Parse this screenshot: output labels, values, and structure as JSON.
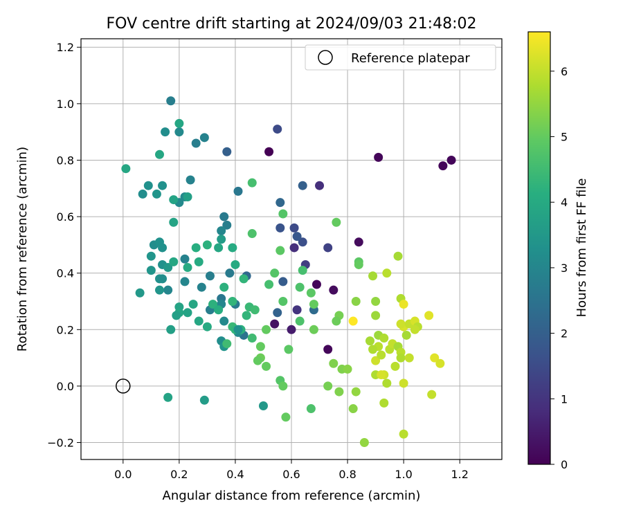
{
  "chart_data": {
    "type": "scatter",
    "title": "FOV centre drift starting at 2024/09/03 21:48:02",
    "xlabel": "Angular distance from reference (arcmin)",
    "ylabel": "Rotation from reference (arcmin)",
    "xlim": [
      -0.15,
      1.35
    ],
    "ylim": [
      -0.26,
      1.23
    ],
    "xticks": [
      0.0,
      0.2,
      0.4,
      0.6,
      0.8,
      1.0,
      1.2
    ],
    "yticks": [
      -0.2,
      0.0,
      0.2,
      0.4,
      0.6,
      0.8,
      1.0,
      1.2
    ],
    "xtick_labels": [
      "0.0",
      "0.2",
      "0.4",
      "0.6",
      "0.8",
      "1.0",
      "1.2"
    ],
    "ytick_labels": [
      "−0.2",
      "0.0",
      "0.2",
      "0.4",
      "0.6",
      "0.8",
      "1.0",
      "1.2"
    ],
    "grid": true,
    "legend": {
      "label": "Reference platepar",
      "placement": "upper right",
      "marker": "open circle"
    },
    "reference_point": {
      "x": 0.0,
      "y": 0.0
    },
    "colorbar": {
      "label": "Hours from first FF file",
      "colormap": "viridis",
      "range": [
        0,
        6.6
      ],
      "ticks": [
        0,
        1,
        2,
        3,
        4,
        5,
        6
      ],
      "tick_labels": [
        "0",
        "1",
        "2",
        "3",
        "4",
        "5",
        "6"
      ]
    },
    "points": [
      [
        0.52,
        0.83,
        0.0
      ],
      [
        0.91,
        0.81,
        0.1
      ],
      [
        1.14,
        0.78,
        0.1
      ],
      [
        1.17,
        0.8,
        0.1
      ],
      [
        0.84,
        0.51,
        0.2
      ],
      [
        0.69,
        0.36,
        0.1
      ],
      [
        0.75,
        0.34,
        0.2
      ],
      [
        0.73,
        0.13,
        0.1
      ],
      [
        0.54,
        0.22,
        0.3
      ],
      [
        0.6,
        0.2,
        0.5
      ],
      [
        0.7,
        0.71,
        0.9
      ],
      [
        0.61,
        0.49,
        0.9
      ],
      [
        0.62,
        0.27,
        1.0
      ],
      [
        0.55,
        0.91,
        1.5
      ],
      [
        0.65,
        0.43,
        1.2
      ],
      [
        0.73,
        0.49,
        1.3
      ],
      [
        0.64,
        0.51,
        1.6
      ],
      [
        0.61,
        0.56,
        1.5
      ],
      [
        0.56,
        0.56,
        1.7
      ],
      [
        0.62,
        0.53,
        1.8
      ],
      [
        0.57,
        0.37,
        1.9
      ],
      [
        0.56,
        0.65,
        2.2
      ],
      [
        0.64,
        0.71,
        2.0
      ],
      [
        0.37,
        0.83,
        2.0
      ],
      [
        0.44,
        0.39,
        2.2
      ],
      [
        0.55,
        0.26,
        2.1
      ],
      [
        0.68,
        0.27,
        2.3
      ],
      [
        0.43,
        0.18,
        2.5
      ],
      [
        0.17,
        1.01,
        2.8
      ],
      [
        0.29,
        0.88,
        2.9
      ],
      [
        0.26,
        0.86,
        2.8
      ],
      [
        0.41,
        0.69,
        2.6
      ],
      [
        0.24,
        0.73,
        2.9
      ],
      [
        0.36,
        0.6,
        2.7
      ],
      [
        0.37,
        0.57,
        2.8
      ],
      [
        0.35,
        0.55,
        3.0
      ],
      [
        0.2,
        0.9,
        3.1
      ],
      [
        0.15,
        0.9,
        3.2
      ],
      [
        0.22,
        0.67,
        3.1
      ],
      [
        0.2,
        0.65,
        3.1
      ],
      [
        0.14,
        0.71,
        3.3
      ],
      [
        0.09,
        0.71,
        3.3
      ],
      [
        0.07,
        0.68,
        3.2
      ],
      [
        0.12,
        0.68,
        3.4
      ],
      [
        0.11,
        0.5,
        3.2
      ],
      [
        0.13,
        0.51,
        3.3
      ],
      [
        0.14,
        0.49,
        3.3
      ],
      [
        0.1,
        0.46,
        3.4
      ],
      [
        0.14,
        0.43,
        3.3
      ],
      [
        0.16,
        0.42,
        3.5
      ],
      [
        0.1,
        0.41,
        3.4
      ],
      [
        0.13,
        0.38,
        3.3
      ],
      [
        0.14,
        0.38,
        3.2
      ],
      [
        0.16,
        0.34,
        3.0
      ],
      [
        0.13,
        0.34,
        3.4
      ],
      [
        0.06,
        0.33,
        3.5
      ],
      [
        0.22,
        0.45,
        2.9
      ],
      [
        0.22,
        0.37,
        3.0
      ],
      [
        0.31,
        0.39,
        2.8
      ],
      [
        0.28,
        0.35,
        2.9
      ],
      [
        0.38,
        0.4,
        2.7
      ],
      [
        0.35,
        0.31,
        2.6
      ],
      [
        0.4,
        0.29,
        2.7
      ],
      [
        0.31,
        0.27,
        2.8
      ],
      [
        0.35,
        0.29,
        3.0
      ],
      [
        0.36,
        0.23,
        3.1
      ],
      [
        0.41,
        0.19,
        3.1
      ],
      [
        0.35,
        0.16,
        3.2
      ],
      [
        0.36,
        0.14,
        3.4
      ],
      [
        0.5,
        -0.07,
        3.5
      ],
      [
        0.29,
        -0.05,
        3.6
      ],
      [
        0.16,
        -0.04,
        3.8
      ],
      [
        0.2,
        0.93,
        3.9
      ],
      [
        0.13,
        0.82,
        3.9
      ],
      [
        0.01,
        0.77,
        3.9
      ],
      [
        0.18,
        0.58,
        3.8
      ],
      [
        0.18,
        0.66,
        3.8
      ],
      [
        0.23,
        0.67,
        3.7
      ],
      [
        0.34,
        0.49,
        3.9
      ],
      [
        0.35,
        0.52,
        3.6
      ],
      [
        0.39,
        0.49,
        4.0
      ],
      [
        0.4,
        0.43,
        4.0
      ],
      [
        0.18,
        0.44,
        3.9
      ],
      [
        0.23,
        0.42,
        4.0
      ],
      [
        0.27,
        0.44,
        4.0
      ],
      [
        0.26,
        0.49,
        4.1
      ],
      [
        0.3,
        0.5,
        4.2
      ],
      [
        0.36,
        0.35,
        4.2
      ],
      [
        0.43,
        0.38,
        4.3
      ],
      [
        0.39,
        0.3,
        4.3
      ],
      [
        0.32,
        0.29,
        4.2
      ],
      [
        0.34,
        0.27,
        4.1
      ],
      [
        0.2,
        0.28,
        3.8
      ],
      [
        0.2,
        0.26,
        3.9
      ],
      [
        0.23,
        0.26,
        3.8
      ],
      [
        0.25,
        0.29,
        3.9
      ],
      [
        0.19,
        0.25,
        3.7
      ],
      [
        0.17,
        0.2,
        3.7
      ],
      [
        0.27,
        0.23,
        3.9
      ],
      [
        0.3,
        0.21,
        4.0
      ],
      [
        0.39,
        0.21,
        4.4
      ],
      [
        0.4,
        0.2,
        4.3
      ],
      [
        0.42,
        0.2,
        4.2
      ],
      [
        0.46,
        0.17,
        4.5
      ],
      [
        0.45,
        0.28,
        4.4
      ],
      [
        0.47,
        0.27,
        4.5
      ],
      [
        0.37,
        0.15,
        4.5
      ],
      [
        0.46,
        0.72,
        4.6
      ],
      [
        0.57,
        0.61,
        4.8
      ],
      [
        0.46,
        0.54,
        4.7
      ],
      [
        0.44,
        0.25,
        4.3
      ],
      [
        0.56,
        0.48,
        4.9
      ],
      [
        0.54,
        0.4,
        4.8
      ],
      [
        0.52,
        0.36,
        4.6
      ],
      [
        0.63,
        0.35,
        4.7
      ],
      [
        0.64,
        0.41,
        4.6
      ],
      [
        0.67,
        0.33,
        4.9
      ],
      [
        0.57,
        0.3,
        4.8
      ],
      [
        0.63,
        0.23,
        4.7
      ],
      [
        0.68,
        0.29,
        5.0
      ],
      [
        0.51,
        0.2,
        5.0
      ],
      [
        0.49,
        0.14,
        5.0
      ],
      [
        0.49,
        0.1,
        5.1
      ],
      [
        0.48,
        0.09,
        5.0
      ],
      [
        0.51,
        0.07,
        5.0
      ],
      [
        0.59,
        0.13,
        4.9
      ],
      [
        0.56,
        0.02,
        4.8
      ],
      [
        0.57,
        0.0,
        5.0
      ],
      [
        0.58,
        -0.11,
        5.0
      ],
      [
        0.67,
        -0.08,
        4.7
      ],
      [
        0.76,
        0.58,
        5.0
      ],
      [
        0.84,
        0.44,
        4.9
      ],
      [
        0.84,
        0.43,
        5.0
      ],
      [
        0.68,
        0.2,
        5.1
      ],
      [
        0.77,
        0.25,
        5.2
      ],
      [
        0.76,
        0.23,
        5.1
      ],
      [
        0.73,
        0.0,
        5.2
      ],
      [
        0.75,
        0.08,
        5.3
      ],
      [
        0.78,
        0.06,
        5.3
      ],
      [
        0.77,
        -0.02,
        5.3
      ],
      [
        0.83,
        0.3,
        5.4
      ],
      [
        0.82,
        -0.08,
        5.4
      ],
      [
        0.83,
        -0.02,
        5.5
      ],
      [
        0.86,
        -0.2,
        5.5
      ],
      [
        0.9,
        0.3,
        5.5
      ],
      [
        0.89,
        0.39,
        5.7
      ],
      [
        0.94,
        0.4,
        5.9
      ],
      [
        0.98,
        0.46,
        5.7
      ],
      [
        0.9,
        0.25,
        5.6
      ],
      [
        0.88,
        0.16,
        5.7
      ],
      [
        0.91,
        0.18,
        5.6
      ],
      [
        0.93,
        0.17,
        5.8
      ],
      [
        0.91,
        0.14,
        5.9
      ],
      [
        0.89,
        0.13,
        5.8
      ],
      [
        0.9,
        0.09,
        6.1
      ],
      [
        0.92,
        0.11,
        5.9
      ],
      [
        0.95,
        0.13,
        5.9
      ],
      [
        0.96,
        0.15,
        6.0
      ],
      [
        0.98,
        0.14,
        5.7
      ],
      [
        0.99,
        0.12,
        5.9
      ],
      [
        0.99,
        0.1,
        5.8
      ],
      [
        1.0,
        0.21,
        6.2
      ],
      [
        0.99,
        0.22,
        6.1
      ],
      [
        0.99,
        0.31,
        5.8
      ],
      [
        1.0,
        0.29,
        6.4
      ],
      [
        1.02,
        0.22,
        6.0
      ],
      [
        1.04,
        0.23,
        6.2
      ],
      [
        1.05,
        0.21,
        5.9
      ],
      [
        1.04,
        0.2,
        6.0
      ],
      [
        1.01,
        0.18,
        5.7
      ],
      [
        1.02,
        0.1,
        6.0
      ],
      [
        0.97,
        0.07,
        5.9
      ],
      [
        0.93,
        0.04,
        6.1
      ],
      [
        0.9,
        0.04,
        5.8
      ],
      [
        0.92,
        0.04,
        6.2
      ],
      [
        0.94,
        0.01,
        5.8
      ],
      [
        1.0,
        0.01,
        6.1
      ],
      [
        0.93,
        -0.06,
        5.8
      ],
      [
        1.0,
        -0.17,
        5.9
      ],
      [
        1.1,
        -0.03,
        6.0
      ],
      [
        1.11,
        0.1,
        6.3
      ],
      [
        1.13,
        0.08,
        6.2
      ],
      [
        1.09,
        0.25,
        6.3
      ],
      [
        0.82,
        0.23,
        6.6
      ],
      [
        0.8,
        0.06,
        5.4
      ],
      [
        0.41,
        0.2,
        3.3
      ]
    ]
  }
}
